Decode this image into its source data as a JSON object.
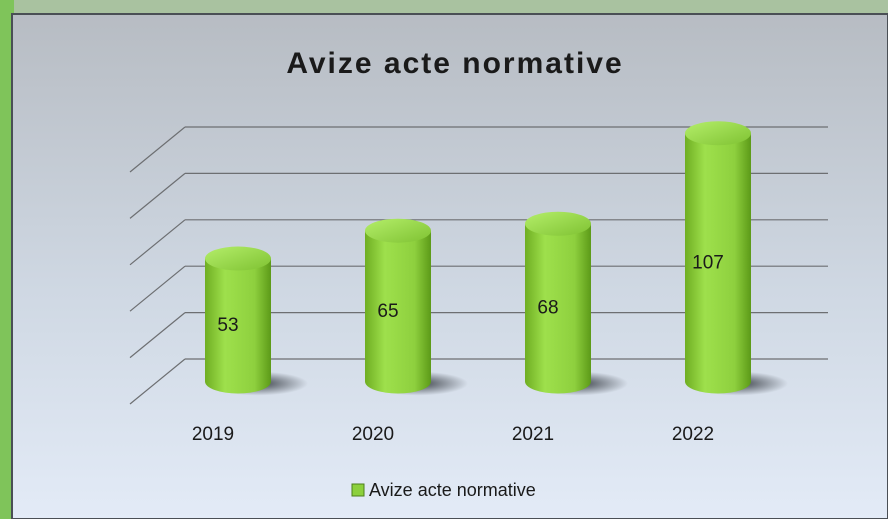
{
  "chart_data": {
    "type": "bar",
    "title": "Avize acte normative",
    "categories": [
      "2019",
      "2020",
      "2021",
      "2022"
    ],
    "series": [
      {
        "name": "Avize acte normative",
        "color": "#8cd03c",
        "values": [
          53,
          65,
          68,
          107
        ]
      }
    ],
    "ylim": [
      0,
      100
    ],
    "yticks": [
      0,
      20,
      40,
      60,
      80,
      100
    ],
    "grid": true
  }
}
